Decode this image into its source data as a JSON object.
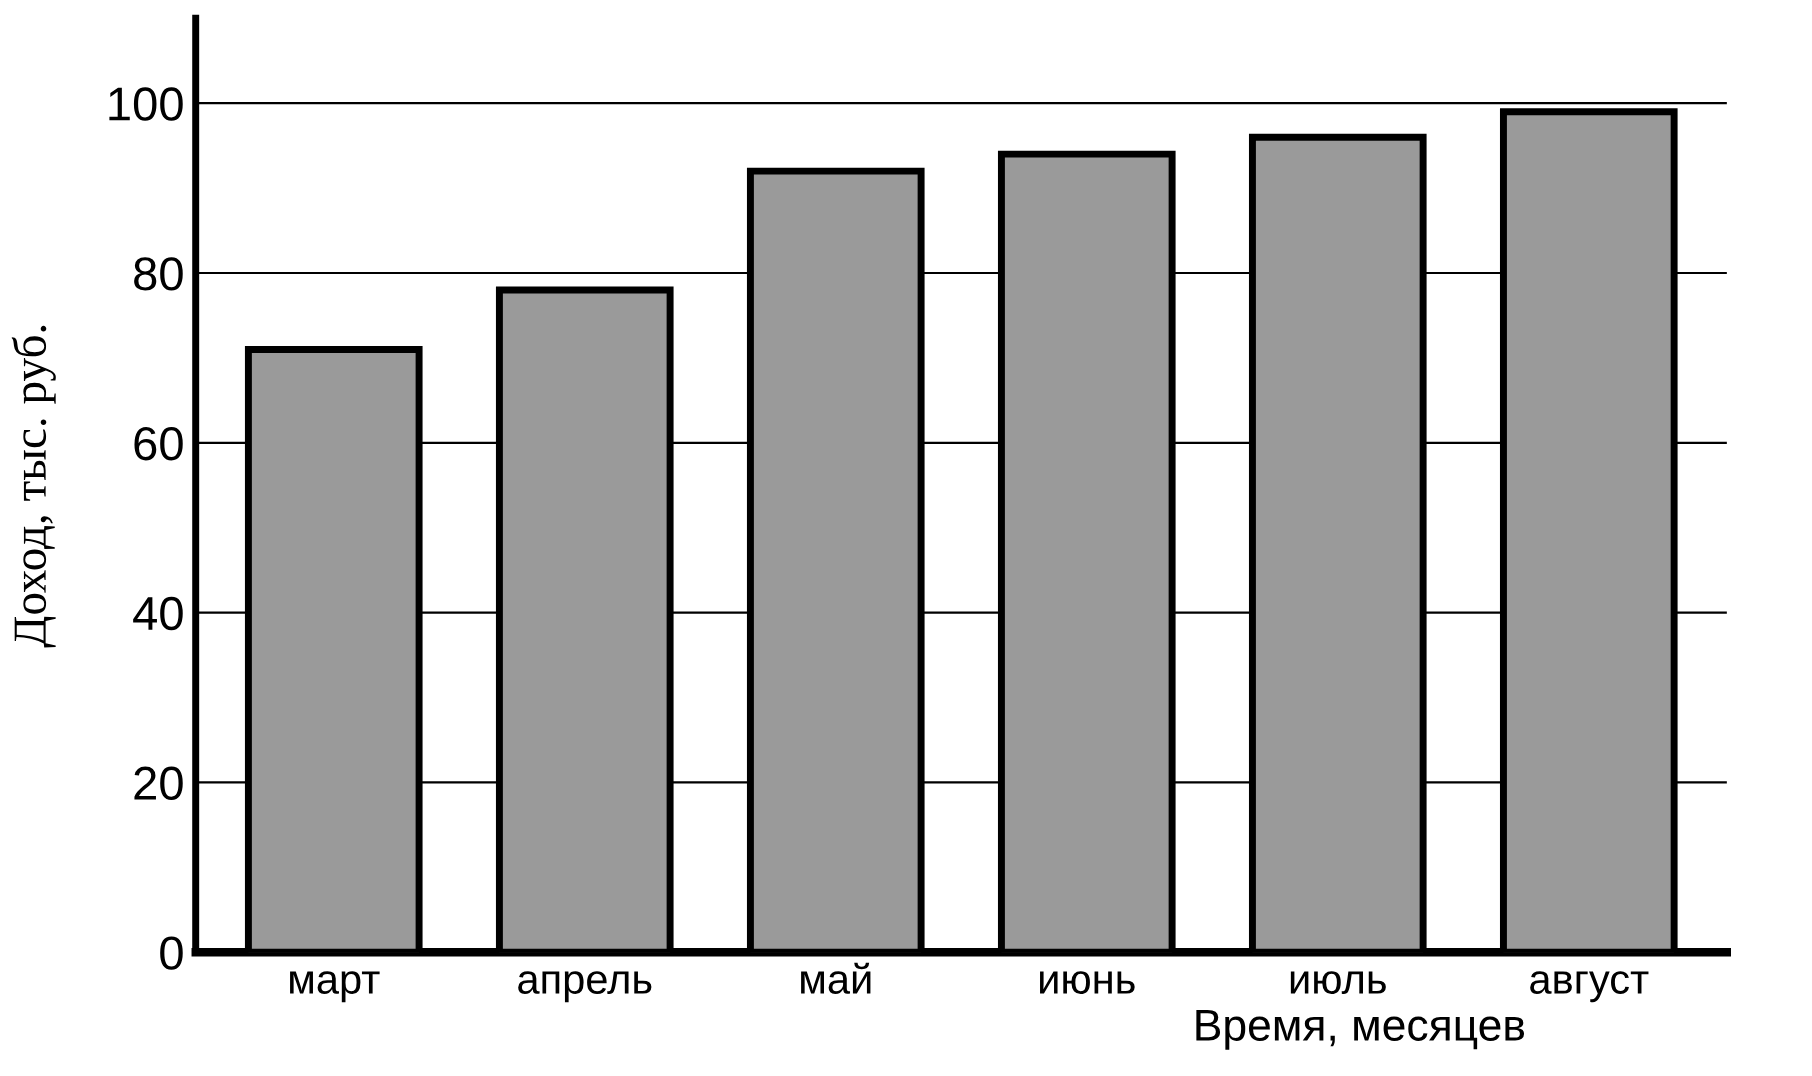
{
  "chart_data": {
    "type": "bar",
    "xlabel": "Время, месяцев",
    "ylabel": "Доход, тыс. руб.",
    "categories": [
      "март",
      "апрель",
      "май",
      "июнь",
      "июль",
      "август"
    ],
    "values": [
      71,
      78,
      92,
      94,
      96,
      99
    ],
    "color": "#9a9a9a",
    "ylim": [
      0,
      110
    ],
    "yticks": [
      0,
      20,
      40,
      60,
      80,
      100
    ],
    "grid": "y",
    "legend": false
  }
}
